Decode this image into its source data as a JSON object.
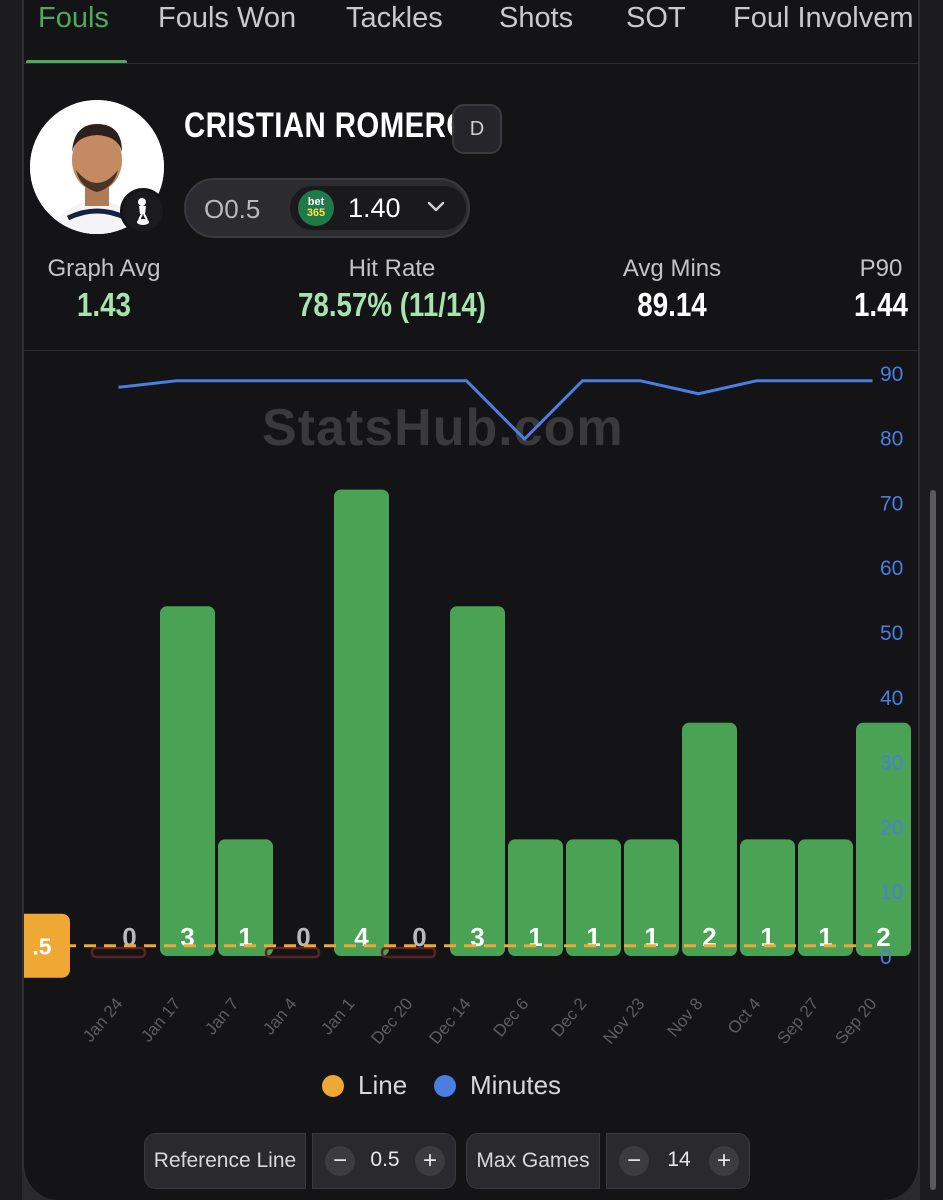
{
  "tabs": [
    "Fouls",
    "Fouls Won",
    "Tackles",
    "Shots",
    "SOT",
    "Foul Involvem"
  ],
  "active_tab": "Fouls",
  "player": {
    "name": "CRISTIAN ROMERO",
    "position": "D",
    "odds_line": "O0.5",
    "bookmaker_top": "bet",
    "bookmaker_bottom": "365",
    "odds_price": "1.40"
  },
  "stats": [
    {
      "label": "Graph Avg",
      "value": "1.43",
      "color": "green"
    },
    {
      "label": "Hit Rate",
      "value": "78.57% (11/14)",
      "color": "green"
    },
    {
      "label": "Avg Mins",
      "value": "89.14",
      "color": "white"
    },
    {
      "label": "P90",
      "value": "1.44",
      "color": "white"
    }
  ],
  "watermark": "StatsHub.com",
  "colors": {
    "accent_green": "#4ea95a",
    "bar_green": "#4aa354",
    "line_orange": "#f0a834",
    "minutes_blue": "#4a7ee0",
    "miss_red": "#5a2424"
  },
  "chart_data": {
    "type": "bar",
    "categories": [
      "Jan 24",
      "Jan 17",
      "Jan 7",
      "Jan 4",
      "Jan 1",
      "Dec 20",
      "Dec 14",
      "Dec 6",
      "Dec 2",
      "Nov 23",
      "Nov 8",
      "Oct 4",
      "Sep 27",
      "Sep 20"
    ],
    "series": [
      {
        "name": "Fouls",
        "values": [
          0,
          3,
          1,
          0,
          4,
          0,
          3,
          1,
          1,
          1,
          2,
          1,
          1,
          2
        ]
      },
      {
        "name": "Minutes",
        "values": [
          89,
          90,
          90,
          90,
          90,
          90,
          90,
          81,
          90,
          90,
          88,
          90,
          90,
          90
        ]
      }
    ],
    "reference_line": 0.5,
    "reference_label": ".5",
    "y2_ticks": [
      "90",
      "80",
      "70",
      "60",
      "50",
      "40",
      "30",
      "20",
      "10",
      "0"
    ],
    "y2_range": [
      0,
      90
    ],
    "y1_range": [
      0,
      5
    ],
    "legend": [
      {
        "label": "Line",
        "color": "#f0a834"
      },
      {
        "label": "Minutes",
        "color": "#4a7ee0"
      }
    ]
  },
  "controls": {
    "reference_line_label": "Reference Line",
    "reference_line_value": "0.5",
    "max_games_label": "Max Games",
    "max_games_value": "14",
    "minus": "−",
    "plus": "+"
  }
}
